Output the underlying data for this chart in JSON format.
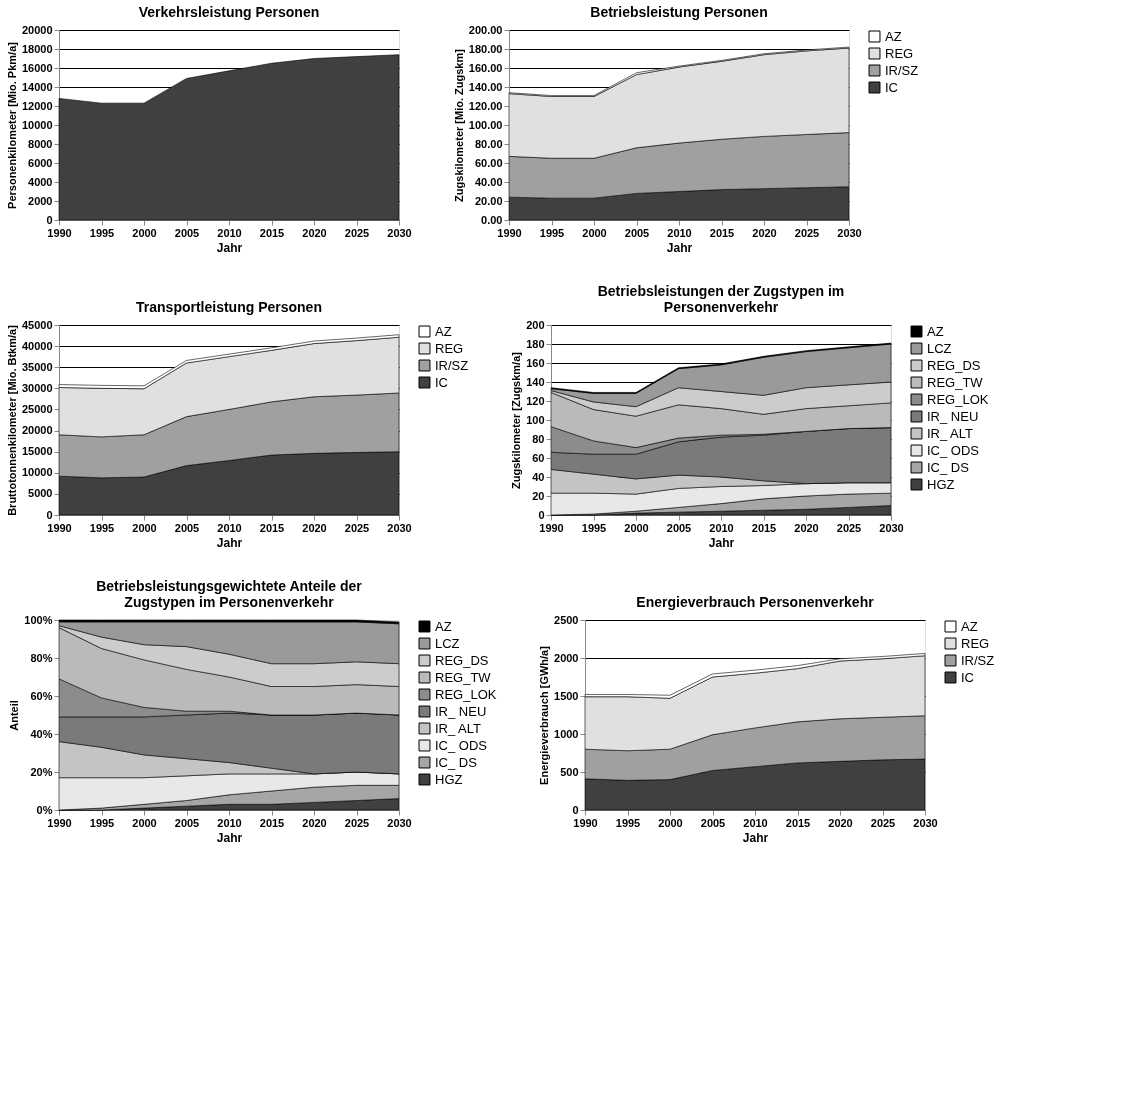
{
  "chart_data": [
    {
      "type": "area",
      "title": "Verkehrsleistung Personen",
      "xlabel": "Jahr",
      "ylabel": "Personenkilometer [Mio. Pkm/a]",
      "categories": [
        "1990",
        "1995",
        "2000",
        "2005",
        "2010",
        "2015",
        "2020",
        "2025",
        "2030"
      ],
      "series": [
        {
          "color": "#404040",
          "values": [
            12800,
            12300,
            12300,
            14900,
            15700,
            16500,
            17000,
            17200,
            17400
          ]
        }
      ],
      "ylim": [
        0,
        20000
      ],
      "yticks": [
        0,
        2000,
        4000,
        6000,
        8000,
        10000,
        12000,
        14000,
        16000,
        18000,
        20000
      ],
      "grid": "y"
    },
    {
      "type": "area",
      "stacked": true,
      "title": "Betriebsleistung Personen",
      "xlabel": "Jahr",
      "ylabel": "Zugskilometer [Mio. Zugskm]",
      "categories": [
        "1990",
        "1995",
        "2000",
        "2005",
        "2010",
        "2015",
        "2020",
        "2025",
        "2030"
      ],
      "series": [
        {
          "name": "IC",
          "color": "#404040",
          "values": [
            24,
            23,
            23,
            28,
            30,
            32,
            33,
            34,
            35
          ]
        },
        {
          "name": "IR/SZ",
          "color": "#a0a0a0",
          "values": [
            43,
            42,
            42,
            48,
            51,
            53,
            55,
            56,
            57
          ]
        },
        {
          "name": "REG",
          "color": "#e0e0e0",
          "values": [
            66,
            65,
            65,
            77,
            80,
            82,
            86,
            88,
            89
          ]
        },
        {
          "name": "AZ",
          "color": "#ffffff",
          "values": [
            1,
            1,
            1,
            2,
            1,
            1,
            1,
            1,
            1
          ]
        }
      ],
      "ylim": [
        0,
        200
      ],
      "yticks": [
        {
          "value": 0,
          "label": "0.00"
        },
        {
          "value": 20,
          "label": "20.00"
        },
        {
          "value": 40,
          "label": "40.00"
        },
        {
          "value": 60,
          "label": "60.00"
        },
        {
          "value": 80,
          "label": "80.00"
        },
        {
          "value": 100,
          "label": "100.00"
        },
        {
          "value": 120,
          "label": "120.00"
        },
        {
          "value": 140,
          "label": "140.00"
        },
        {
          "value": 160,
          "label": "160.00"
        },
        {
          "value": 180,
          "label": "180.00"
        },
        {
          "value": 200,
          "label": "200.00"
        }
      ],
      "grid": "y",
      "legend": "right"
    },
    {
      "type": "area",
      "stacked": true,
      "title": "Transportleistung Personen",
      "xlabel": "Jahr",
      "ylabel": "Bruttotonnenkilometer [Mio. Btkm/a]",
      "categories": [
        "1990",
        "1995",
        "2000",
        "2005",
        "2010",
        "2015",
        "2020",
        "2025",
        "2030"
      ],
      "series": [
        {
          "name": "IC",
          "color": "#404040",
          "values": [
            9200,
            8800,
            9000,
            11700,
            12900,
            14200,
            14600,
            14800,
            15000
          ]
        },
        {
          "name": "IR/SZ",
          "color": "#a0a0a0",
          "values": [
            9800,
            9700,
            10000,
            11600,
            12100,
            12600,
            13400,
            13600,
            13900
          ]
        },
        {
          "name": "REG",
          "color": "#e0e0e0",
          "values": [
            11200,
            11500,
            10900,
            12700,
            12500,
            12200,
            12600,
            12900,
            13200
          ]
        },
        {
          "name": "AZ",
          "color": "#ffffff",
          "values": [
            700,
            700,
            700,
            600,
            600,
            600,
            600,
            600,
            600
          ]
        }
      ],
      "ylim": [
        0,
        45000
      ],
      "yticks": [
        0,
        5000,
        10000,
        15000,
        20000,
        25000,
        30000,
        35000,
        40000,
        45000
      ],
      "grid": "y",
      "legend": "right"
    },
    {
      "type": "area",
      "stacked": true,
      "title": "Betriebsleistungen der Zugstypen im Personenverkehr",
      "xlabel": "Jahr",
      "ylabel": "Zugskilometer [Zugskm/a]",
      "categories": [
        "1990",
        "1995",
        "2000",
        "2005",
        "2010",
        "2015",
        "2020",
        "2025",
        "2030"
      ],
      "series": [
        {
          "name": "HGZ",
          "color": "#404040",
          "values": [
            0,
            0,
            2,
            3,
            4,
            5,
            6,
            8,
            10
          ]
        },
        {
          "name": "IC_ DS",
          "color": "#a6a6a6",
          "values": [
            0,
            1,
            2,
            5,
            8,
            12,
            14,
            14,
            13
          ]
        },
        {
          "name": "IC_ ODS",
          "color": "#e8e8e8",
          "values": [
            23,
            22,
            18,
            20,
            18,
            14,
            13,
            12,
            11
          ]
        },
        {
          "name": "IR_ ALT",
          "color": "#c4c4c4",
          "values": [
            25,
            20,
            16,
            14,
            10,
            5,
            0,
            0,
            0
          ]
        },
        {
          "name": "IR_ NEU",
          "color": "#7a7a7a",
          "values": [
            18,
            21,
            26,
            35,
            42,
            48,
            55,
            57,
            58
          ]
        },
        {
          "name": "REG_LOK",
          "color": "#8c8c8c",
          "values": [
            27,
            14,
            7,
            4,
            2,
            1,
            0,
            0,
            0
          ]
        },
        {
          "name": "REG_TW",
          "color": "#bababa",
          "values": [
            36,
            33,
            33,
            35,
            28,
            21,
            24,
            24,
            26
          ]
        },
        {
          "name": "REG_DS",
          "color": "#cccccc",
          "values": [
            2,
            8,
            10,
            18,
            18,
            20,
            22,
            22,
            22
          ]
        },
        {
          "name": "LCZ",
          "color": "#9a9a9a",
          "values": [
            2,
            9,
            14,
            20,
            28,
            40,
            38,
            39,
            40
          ]
        },
        {
          "name": "AZ",
          "color": "#000000",
          "values": [
            1,
            1,
            1,
            1,
            1,
            1,
            1,
            1,
            1
          ]
        }
      ],
      "ylim": [
        0,
        200
      ],
      "yticks": [
        0,
        20,
        40,
        60,
        80,
        100,
        120,
        140,
        160,
        180,
        200
      ],
      "grid": "y",
      "legend": "right"
    },
    {
      "type": "area",
      "stacked": true,
      "title": "Betriebsleistungsgewichtete Anteile der Zugstypen im Personenverkehr",
      "xlabel": "Jahr",
      "ylabel": "Anteil",
      "categories": [
        "1990",
        "1995",
        "2000",
        "2005",
        "2010",
        "2015",
        "2020",
        "2025",
        "2030"
      ],
      "series": [
        {
          "name": "HGZ",
          "color": "#404040",
          "values": [
            0,
            0,
            1,
            2,
            3,
            3,
            4,
            5,
            6
          ]
        },
        {
          "name": "IC_ DS",
          "color": "#a6a6a6",
          "values": [
            0,
            1,
            2,
            3,
            5,
            7,
            8,
            8,
            7
          ]
        },
        {
          "name": "IC_ ODS",
          "color": "#e8e8e8",
          "values": [
            17,
            16,
            14,
            13,
            11,
            9,
            7,
            7,
            6
          ]
        },
        {
          "name": "IR_ ALT",
          "color": "#c4c4c4",
          "values": [
            19,
            16,
            12,
            9,
            6,
            3,
            0,
            0,
            0
          ]
        },
        {
          "name": "IR_ NEU",
          "color": "#7a7a7a",
          "values": [
            13,
            16,
            20,
            23,
            26,
            28,
            31,
            31,
            31
          ]
        },
        {
          "name": "REG_LOK",
          "color": "#8c8c8c",
          "values": [
            20,
            10,
            5,
            2,
            1,
            0,
            0,
            0,
            0
          ]
        },
        {
          "name": "REG_TW",
          "color": "#bababa",
          "values": [
            27,
            26,
            25,
            22,
            18,
            15,
            15,
            15,
            15
          ]
        },
        {
          "name": "REG_DS",
          "color": "#cccccc",
          "values": [
            1,
            6,
            8,
            12,
            12,
            12,
            12,
            12,
            12
          ]
        },
        {
          "name": "LCZ",
          "color": "#9a9a9a",
          "values": [
            2,
            8,
            12,
            13,
            17,
            22,
            22,
            21,
            21
          ]
        },
        {
          "name": "AZ",
          "color": "#000000",
          "values": [
            1,
            1,
            1,
            1,
            1,
            1,
            1,
            1,
            1
          ]
        }
      ],
      "ylim": [
        0,
        100
      ],
      "yticks": [
        {
          "value": 0,
          "label": "0%"
        },
        {
          "value": 20,
          "label": "20%"
        },
        {
          "value": 40,
          "label": "40%"
        },
        {
          "value": 60,
          "label": "60%"
        },
        {
          "value": 80,
          "label": "80%"
        },
        {
          "value": 100,
          "label": "100%"
        }
      ],
      "legend": "right"
    },
    {
      "type": "area",
      "stacked": true,
      "title": "Energieverbrauch Personenverkehr",
      "xlabel": "Jahr",
      "ylabel": "Energieverbrauch [GWh/a]",
      "categories": [
        "1990",
        "1995",
        "2000",
        "2005",
        "2010",
        "2015",
        "2020",
        "2025",
        "2030"
      ],
      "series": [
        {
          "name": "IC",
          "color": "#404040",
          "values": [
            410,
            390,
            400,
            520,
            570,
            620,
            640,
            660,
            670
          ]
        },
        {
          "name": "IR/SZ",
          "color": "#a0a0a0",
          "values": [
            390,
            390,
            400,
            470,
            510,
            540,
            560,
            560,
            570
          ]
        },
        {
          "name": "REG",
          "color": "#e0e0e0",
          "values": [
            690,
            710,
            670,
            760,
            720,
            700,
            760,
            770,
            790
          ]
        },
        {
          "name": "AZ",
          "color": "#ffffff",
          "values": [
            30,
            30,
            40,
            40,
            40,
            40,
            30,
            30,
            30
          ]
        }
      ],
      "ylim": [
        0,
        2500
      ],
      "yticks": [
        0,
        500,
        1000,
        1500,
        2000,
        2500
      ],
      "grid": "y",
      "legend": "right"
    }
  ]
}
